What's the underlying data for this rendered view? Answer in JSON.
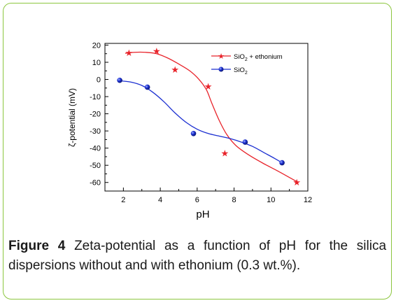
{
  "figure": {
    "label": "Figure 4",
    "caption": "Zeta-potential as a function of pH for the silica dispersions without and with ethonium (0.3 wt.%)."
  },
  "chart_data": {
    "type": "scatter",
    "xlabel": "pH",
    "ylabel": "ζ-potential  (mV)",
    "xlim": [
      1,
      12
    ],
    "ylim": [
      -65,
      21
    ],
    "xticks": [
      2,
      4,
      6,
      8,
      10,
      12
    ],
    "yticks": [
      20,
      10,
      0,
      -10,
      -20,
      -30,
      -40,
      -50,
      -60
    ],
    "legend_position": "top-right",
    "grid": false,
    "series": [
      {
        "name": "SiO2 + ethonium",
        "legend_main": "SiO",
        "legend_sub": "2",
        "legend_tail": " + ethonium",
        "color": "#e8232a",
        "marker": "star",
        "points": [
          [
            2.3,
            15.5
          ],
          [
            3.8,
            16.5
          ],
          [
            4.8,
            5.8
          ],
          [
            6.6,
            -4
          ],
          [
            7.5,
            -43
          ],
          [
            11.4,
            -60
          ]
        ],
        "fit": [
          [
            2.1,
            15.2
          ],
          [
            2.6,
            15.8
          ],
          [
            3.2,
            15.8
          ],
          [
            3.8,
            15
          ],
          [
            4.4,
            12.5
          ],
          [
            5.0,
            9
          ],
          [
            5.6,
            5
          ],
          [
            6.1,
            0
          ],
          [
            6.5,
            -6
          ],
          [
            6.8,
            -14
          ],
          [
            7.2,
            -24
          ],
          [
            7.6,
            -32
          ],
          [
            8.1,
            -38.5
          ],
          [
            8.8,
            -44
          ],
          [
            9.6,
            -49
          ],
          [
            10.4,
            -53.5
          ],
          [
            11.4,
            -59.5
          ]
        ]
      },
      {
        "name": "SiO2",
        "legend_main": "SiO",
        "legend_sub": "2",
        "legend_tail": "",
        "color": "#1b2fd1",
        "marker": "sphere",
        "points": [
          [
            1.8,
            -0.5
          ],
          [
            3.3,
            -4.5
          ],
          [
            5.8,
            -31.5
          ],
          [
            8.6,
            -36.5
          ],
          [
            10.6,
            -48.5
          ]
        ],
        "fit": [
          [
            1.8,
            -0.8
          ],
          [
            2.4,
            -1.5
          ],
          [
            3.0,
            -3.5
          ],
          [
            3.6,
            -7.5
          ],
          [
            4.2,
            -13
          ],
          [
            4.8,
            -19.5
          ],
          [
            5.4,
            -25
          ],
          [
            6.0,
            -29
          ],
          [
            6.6,
            -31.5
          ],
          [
            7.2,
            -33
          ],
          [
            7.8,
            -34.5
          ],
          [
            8.4,
            -36.5
          ],
          [
            9.0,
            -39
          ],
          [
            9.6,
            -42.5
          ],
          [
            10.2,
            -46
          ],
          [
            10.6,
            -48.5
          ]
        ]
      }
    ]
  }
}
